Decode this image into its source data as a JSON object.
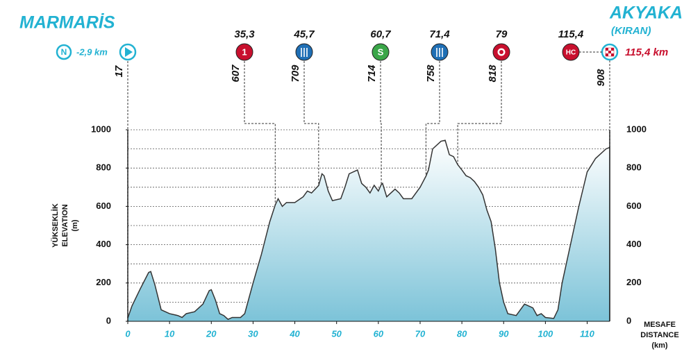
{
  "start": {
    "name": "MARMARİS",
    "icon": "N",
    "distance": {
      "value": -2.9,
      "label": "-2,9 km"
    },
    "elevation": 17
  },
  "finish": {
    "name": "AKYAKA",
    "subname": "(KIRAN)",
    "distance": {
      "value": 115.4,
      "label": "115,4 km"
    }
  },
  "chart_data": {
    "type": "area",
    "x": [
      0,
      1,
      3,
      5,
      5.5,
      6.5,
      8,
      10,
      12,
      13,
      14,
      16,
      18,
      19.5,
      20,
      21,
      22,
      23,
      24,
      25,
      27,
      28,
      30,
      32,
      34,
      35.3,
      36,
      37,
      38,
      40,
      42,
      43,
      44,
      45.7,
      46.5,
      47,
      48,
      49,
      51,
      52,
      53,
      55,
      56,
      57,
      58,
      59,
      60,
      60.7,
      61,
      62,
      64,
      65,
      66,
      68,
      70,
      71.4,
      72,
      73,
      75,
      76,
      77,
      78,
      79,
      80,
      81,
      82,
      83,
      84,
      85,
      86,
      87,
      88,
      89,
      90,
      91,
      93,
      94,
      95,
      96,
      97,
      98,
      99,
      100,
      102,
      103,
      104,
      106,
      108,
      110,
      112,
      114.5,
      115.4
    ],
    "values": [
      17,
      80,
      170,
      255,
      260,
      190,
      60,
      40,
      30,
      20,
      40,
      50,
      90,
      160,
      165,
      110,
      40,
      30,
      10,
      20,
      20,
      40,
      200,
      350,
      520,
      607,
      640,
      600,
      620,
      620,
      650,
      680,
      670,
      709,
      770,
      760,
      680,
      630,
      640,
      700,
      770,
      790,
      720,
      700,
      670,
      710,
      680,
      714,
      720,
      650,
      690,
      670,
      640,
      640,
      700,
      758,
      790,
      900,
      940,
      945,
      870,
      860,
      818,
      790,
      760,
      750,
      730,
      700,
      660,
      580,
      520,
      380,
      200,
      100,
      40,
      30,
      60,
      90,
      80,
      70,
      30,
      40,
      20,
      15,
      60,
      200,
      400,
      600,
      780,
      850,
      900,
      908
    ],
    "color": "#7cc3d8",
    "line_color": "#333333",
    "xlim": [
      0,
      115.4
    ],
    "xticks": [
      0,
      10,
      20,
      30,
      40,
      50,
      60,
      70,
      80,
      90,
      100,
      110
    ],
    "ylim": [
      0,
      1000
    ],
    "yticks": [
      0,
      200,
      400,
      600,
      800,
      1000
    ],
    "ygrid": [
      100,
      200,
      300,
      400,
      500,
      600,
      700,
      800,
      900,
      1000
    ],
    "y_label": [
      "YÜKSEKLİK",
      "ELEVATION",
      "(m)"
    ],
    "x_label": [
      "MESAFE",
      "DISTANCE",
      "(km)"
    ],
    "points": [
      {
        "km": {
          "value": 35.3,
          "label": "35,3"
        },
        "elevation": 607,
        "icon": "1",
        "color": "#c8102e"
      },
      {
        "km": {
          "value": 45.7,
          "label": "45,7"
        },
        "elevation": 709,
        "symbol": "food",
        "color": "#1f6fb5"
      },
      {
        "km": {
          "value": 60.7,
          "label": "60,7"
        },
        "elevation": 714,
        "icon": "S",
        "color": "#3aa648"
      },
      {
        "km": {
          "value": 71.4,
          "label": "71,4"
        },
        "elevation": 758,
        "symbol": "food",
        "color": "#1f6fb5"
      },
      {
        "km": 79,
        "elevation": 818,
        "symbol": "gear",
        "color": "#c8102e"
      },
      {
        "km": {
          "value": 115.4,
          "label": "115,4"
        },
        "elevation": 908,
        "icon": "HC",
        "color": "#c8102e"
      }
    ]
  }
}
